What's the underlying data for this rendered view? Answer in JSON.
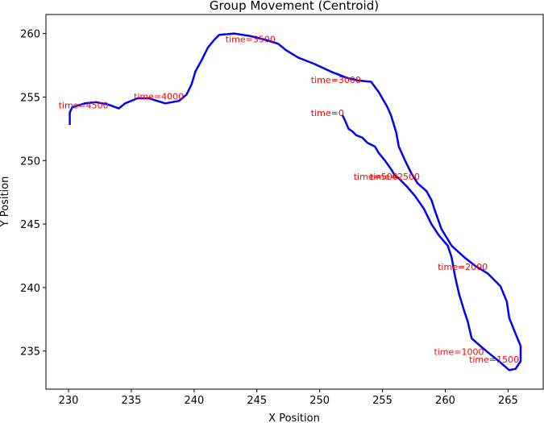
{
  "chart_data": {
    "type": "line",
    "title": "Group Movement (Centroid)",
    "xlabel": "X Position",
    "ylabel": "Y Position",
    "color": "blue",
    "annotation_color": "red",
    "x": [
      251.8,
      252.0,
      252.3,
      252.6,
      252.9,
      253.4,
      253.8,
      254.4,
      254.7,
      255.2,
      255.7,
      256.0,
      256.3,
      257.0,
      257.6,
      258.3,
      258.9,
      259.5,
      260.2,
      260.5,
      260.8,
      261.1,
      261.5,
      261.8,
      262.1,
      262.8,
      263.4,
      264.4,
      265.1,
      265.6,
      266.0,
      266.0,
      265.5,
      265.1,
      264.9,
      264.4,
      263.4,
      262.4,
      261.5,
      260.5,
      259.7,
      259.2,
      258.9,
      258.5,
      257.8,
      257.3,
      256.8,
      256.3,
      256.1,
      255.7,
      255.4,
      254.7,
      254.1,
      253.1,
      252.2,
      250.9,
      249.6,
      248.3,
      247.3,
      246.7,
      245.7,
      244.5,
      243.2,
      242.0,
      241.6,
      241.1,
      240.6,
      240.1,
      239.8,
      239.4,
      238.8,
      237.7,
      236.4,
      235.5,
      234.5,
      234.0,
      233.2,
      232.2,
      231.3,
      230.3,
      230.1,
      230.1,
      230.1
    ],
    "y": [
      253.6,
      253.2,
      252.5,
      252.3,
      252.0,
      251.8,
      251.4,
      251.1,
      250.6,
      250.0,
      249.3,
      248.8,
      248.6,
      247.9,
      247.2,
      246.2,
      245.0,
      244.1,
      243.3,
      242.4,
      240.8,
      239.5,
      238.2,
      237.3,
      236.0,
      235.4,
      234.9,
      234.1,
      233.5,
      233.6,
      234.2,
      235.4,
      236.6,
      237.6,
      238.9,
      240.1,
      241.1,
      241.7,
      242.4,
      243.3,
      244.6,
      246.0,
      246.9,
      247.6,
      248.2,
      249.0,
      250.0,
      251.1,
      252.2,
      253.5,
      254.2,
      255.4,
      256.2,
      256.3,
      256.5,
      257.0,
      257.6,
      258.1,
      258.7,
      259.2,
      259.5,
      259.8,
      260.0,
      259.9,
      259.5,
      258.9,
      257.9,
      257.0,
      256.0,
      255.2,
      254.7,
      254.5,
      254.9,
      254.9,
      254.5,
      254.1,
      254.4,
      254.6,
      254.5,
      254.2,
      253.8,
      253.3,
      252.8
    ],
    "annotations": [
      {
        "text": "time=0",
        "x": 249.3,
        "y": 253.5
      },
      {
        "text": "time=500",
        "x": 252.7,
        "y": 248.5
      },
      {
        "text": "time=1000",
        "x": 259.1,
        "y": 234.7
      },
      {
        "text": "time=1500",
        "x": 261.9,
        "y": 234.1
      },
      {
        "text": "time=2000",
        "x": 259.4,
        "y": 241.4
      },
      {
        "text": "time=2500",
        "x": 254.0,
        "y": 248.5
      },
      {
        "text": "time=3000",
        "x": 249.3,
        "y": 256.1
      },
      {
        "text": "time=3500",
        "x": 242.5,
        "y": 259.3
      },
      {
        "text": "time=4000",
        "x": 235.2,
        "y": 254.8
      },
      {
        "text": "time=4500",
        "x": 229.2,
        "y": 254.1
      }
    ],
    "xlim": [
      228.2,
      267.8
    ],
    "ylim": [
      232.0,
      261.5
    ],
    "xticks": [
      230,
      235,
      240,
      245,
      250,
      255,
      260,
      265
    ],
    "yticks": [
      235,
      240,
      245,
      250,
      255,
      260
    ]
  }
}
